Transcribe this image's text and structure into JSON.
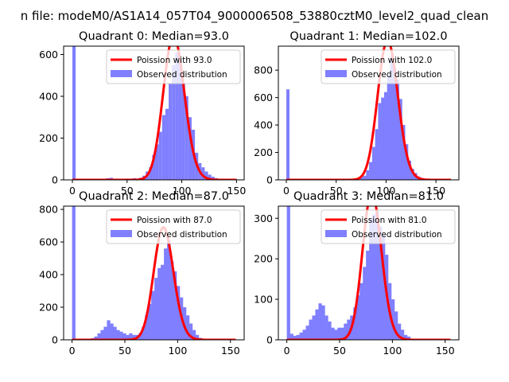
{
  "figure": {
    "suptitle": "n file: modeM0/AS1A14_057T04_9000006508_53880cztM0_level2_quad_clean"
  },
  "colors": {
    "poisson": "#ff0000",
    "observed": "#7f7fff"
  },
  "chart_data": [
    {
      "type": "bar",
      "title": "Quadrant 0: Median=93.0",
      "median": 93.0,
      "xlim": [
        -8,
        157
      ],
      "ylim": [
        0,
        640
      ],
      "xticks": [
        0,
        50,
        100,
        150
      ],
      "yticks": [
        0,
        200,
        400,
        600
      ],
      "bin_width": 3,
      "spike": {
        "x": 0,
        "value": 640
      },
      "observed": [
        [
          22,
          0
        ],
        [
          25,
          2
        ],
        [
          28,
          2
        ],
        [
          31,
          8
        ],
        [
          34,
          10
        ],
        [
          37,
          4
        ],
        [
          40,
          6
        ],
        [
          43,
          2
        ],
        [
          46,
          4
        ],
        [
          49,
          6
        ],
        [
          52,
          6
        ],
        [
          55,
          8
        ],
        [
          58,
          6
        ],
        [
          61,
          10
        ],
        [
          64,
          20
        ],
        [
          67,
          40
        ],
        [
          70,
          60
        ],
        [
          73,
          120
        ],
        [
          76,
          170
        ],
        [
          79,
          230
        ],
        [
          82,
          310
        ],
        [
          85,
          340
        ],
        [
          88,
          460
        ],
        [
          91,
          550
        ],
        [
          94,
          610
        ],
        [
          97,
          580
        ],
        [
          100,
          460
        ],
        [
          103,
          400
        ],
        [
          106,
          300
        ],
        [
          109,
          240
        ],
        [
          112,
          130
        ],
        [
          115,
          80
        ],
        [
          118,
          60
        ],
        [
          121,
          40
        ],
        [
          124,
          25
        ],
        [
          127,
          15
        ],
        [
          130,
          8
        ],
        [
          133,
          4
        ]
      ],
      "poisson_x": [
        0,
        150
      ],
      "legend": {
        "poisson": "Poission with 93.0",
        "observed": "Observed distribution"
      }
    },
    {
      "type": "bar",
      "title": "Quadrant 1: Median=102.0",
      "median": 102.0,
      "xlim": [
        -8,
        173
      ],
      "ylim": [
        0,
        975
      ],
      "xticks": [
        0,
        50,
        100,
        150
      ],
      "yticks": [
        0,
        200,
        400,
        600,
        800
      ],
      "bin_width": 3.2,
      "spike": {
        "x": 0,
        "value": 660
      },
      "observed": [
        [
          48,
          0
        ],
        [
          55,
          4
        ],
        [
          60,
          4
        ],
        [
          65,
          6
        ],
        [
          70,
          10
        ],
        [
          74,
          20
        ],
        [
          77,
          30
        ],
        [
          80,
          70
        ],
        [
          83,
          130
        ],
        [
          86,
          240
        ],
        [
          89,
          370
        ],
        [
          92,
          560
        ],
        [
          95,
          600
        ],
        [
          98,
          640
        ],
        [
          101,
          760
        ],
        [
          104,
          900
        ],
        [
          107,
          820
        ],
        [
          110,
          730
        ],
        [
          113,
          590
        ],
        [
          116,
          400
        ],
        [
          119,
          260
        ],
        [
          122,
          140
        ],
        [
          125,
          80
        ],
        [
          128,
          50
        ],
        [
          131,
          25
        ],
        [
          134,
          15
        ],
        [
          137,
          8
        ],
        [
          140,
          4
        ]
      ],
      "poisson_x": [
        0,
        165
      ],
      "legend": {
        "poisson": "Poission with 102.0",
        "observed": "Observed distribution"
      }
    },
    {
      "type": "bar",
      "title": "Quadrant 2: Median=87.0",
      "median": 87.0,
      "xlim": [
        -8,
        163
      ],
      "ylim": [
        0,
        820
      ],
      "xticks": [
        0,
        50,
        100,
        150
      ],
      "yticks": [
        0,
        200,
        400,
        600,
        800
      ],
      "bin_width": 3.2,
      "spike": {
        "x": 0,
        "value": 820
      },
      "observed": [
        [
          15,
          4
        ],
        [
          18,
          10
        ],
        [
          21,
          20
        ],
        [
          24,
          40
        ],
        [
          27,
          60
        ],
        [
          30,
          80
        ],
        [
          33,
          120
        ],
        [
          36,
          100
        ],
        [
          39,
          80
        ],
        [
          42,
          60
        ],
        [
          45,
          50
        ],
        [
          48,
          40
        ],
        [
          51,
          30
        ],
        [
          54,
          40
        ],
        [
          57,
          30
        ],
        [
          60,
          30
        ],
        [
          63,
          40
        ],
        [
          66,
          80
        ],
        [
          69,
          150
        ],
        [
          72,
          220
        ],
        [
          75,
          300
        ],
        [
          78,
          380
        ],
        [
          81,
          440
        ],
        [
          84,
          460
        ],
        [
          87,
          560
        ],
        [
          90,
          610
        ],
        [
          93,
          480
        ],
        [
          96,
          420
        ],
        [
          99,
          330
        ],
        [
          102,
          260
        ],
        [
          105,
          200
        ],
        [
          108,
          150
        ],
        [
          111,
          100
        ],
        [
          114,
          60
        ],
        [
          117,
          30
        ],
        [
          120,
          12
        ],
        [
          123,
          4
        ]
      ],
      "poisson_x": [
        0,
        155
      ],
      "legend": {
        "poisson": "Poission with 87.0",
        "observed": "Observed distribution"
      }
    },
    {
      "type": "bar",
      "title": "Quadrant 3: Median=81.0",
      "median": 81.0,
      "xlim": [
        -8,
        163
      ],
      "ylim": [
        0,
        330
      ],
      "xticks": [
        0,
        50,
        100,
        150
      ],
      "yticks": [
        0,
        100,
        200,
        300
      ],
      "bin_width": 3.2,
      "spike": {
        "x": 0,
        "value": 330
      },
      "observed": [
        [
          3,
          15
        ],
        [
          6,
          10
        ],
        [
          9,
          12
        ],
        [
          12,
          18
        ],
        [
          15,
          25
        ],
        [
          18,
          35
        ],
        [
          21,
          50
        ],
        [
          24,
          60
        ],
        [
          27,
          75
        ],
        [
          30,
          90
        ],
        [
          33,
          85
        ],
        [
          36,
          60
        ],
        [
          39,
          45
        ],
        [
          42,
          30
        ],
        [
          45,
          25
        ],
        [
          48,
          30
        ],
        [
          51,
          30
        ],
        [
          54,
          40
        ],
        [
          57,
          50
        ],
        [
          60,
          60
        ],
        [
          63,
          80
        ],
        [
          66,
          110
        ],
        [
          69,
          140
        ],
        [
          72,
          180
        ],
        [
          75,
          220
        ],
        [
          78,
          300
        ],
        [
          81,
          310
        ],
        [
          84,
          320
        ],
        [
          87,
          280
        ],
        [
          90,
          260
        ],
        [
          93,
          210
        ],
        [
          96,
          140
        ],
        [
          99,
          100
        ],
        [
          102,
          70
        ],
        [
          105,
          40
        ],
        [
          108,
          25
        ],
        [
          111,
          12
        ],
        [
          114,
          8
        ]
      ],
      "poisson_x": [
        0,
        155
      ],
      "legend": {
        "poisson": "Poission with 81.0",
        "observed": "Observed distribution"
      }
    }
  ]
}
